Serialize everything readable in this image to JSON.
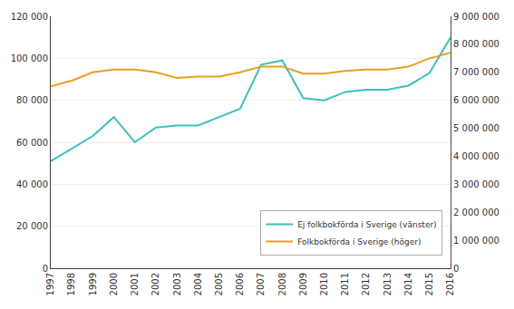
{
  "chart_data": {
    "type": "line",
    "x": [
      1997,
      1998,
      1999,
      2000,
      2001,
      2002,
      2003,
      2004,
      2005,
      2006,
      2007,
      2008,
      2009,
      2010,
      2011,
      2012,
      2013,
      2014,
      2015,
      2016
    ],
    "series": [
      {
        "name": "Ej folkbokförda i Sverige (vänster)",
        "color": "#3dbfbf",
        "values": [
          51000,
          57000,
          63000,
          72000,
          60000,
          67000,
          68000,
          68000,
          72000,
          76000,
          97000,
          99000,
          81000,
          80000,
          84000,
          85000,
          85000,
          87000,
          93000,
          110000
        ]
      },
      {
        "name": "Folkbokförda i Sverige (höger)",
        "color": "#e8a020",
        "axis": "y2",
        "values": [
          6500000,
          6700000,
          7000000,
          7100000,
          7100000,
          7000000,
          6800000,
          6850000,
          6850000,
          7000000,
          7200000,
          7200000,
          6950000,
          6950000,
          7050000,
          7100000,
          7100000,
          7200000,
          7500000,
          7700000
        ]
      }
    ],
    "xlim": [
      1997,
      2016
    ],
    "xticks": [
      1997,
      1998,
      1999,
      2000,
      2001,
      2002,
      2003,
      2004,
      2005,
      2006,
      2007,
      2008,
      2009,
      2010,
      2011,
      2012,
      2013,
      2014,
      2015,
      2016
    ],
    "ylim": [
      0,
      120000
    ],
    "yticks": [
      0,
      {
        "value": 20000,
        "label": "20 000"
      },
      {
        "value": 40000,
        "label": "40 000"
      },
      {
        "value": 60000,
        "label": "60 000"
      },
      {
        "value": 80000,
        "label": "80 000"
      },
      {
        "value": 100000,
        "label": "100 000"
      },
      {
        "value": 120000,
        "label": "120 000"
      }
    ],
    "y2lim": [
      0,
      9000000
    ],
    "y2ticks": [
      0,
      {
        "value": 1000000,
        "label": "1 000 000"
      },
      {
        "value": 2000000,
        "label": "2 000 000"
      },
      {
        "value": 3000000,
        "label": "3 000 000"
      },
      {
        "value": 4000000,
        "label": "4 000 000"
      },
      {
        "value": 5000000,
        "label": "5 000 000"
      },
      {
        "value": 6000000,
        "label": "6 000 000"
      },
      {
        "value": 7000000,
        "label": "7 000 000"
      },
      {
        "value": 8000000,
        "label": "8 000 000"
      },
      {
        "value": 9000000,
        "label": "9 000 000"
      }
    ],
    "grid": true,
    "legend": "lower right"
  }
}
